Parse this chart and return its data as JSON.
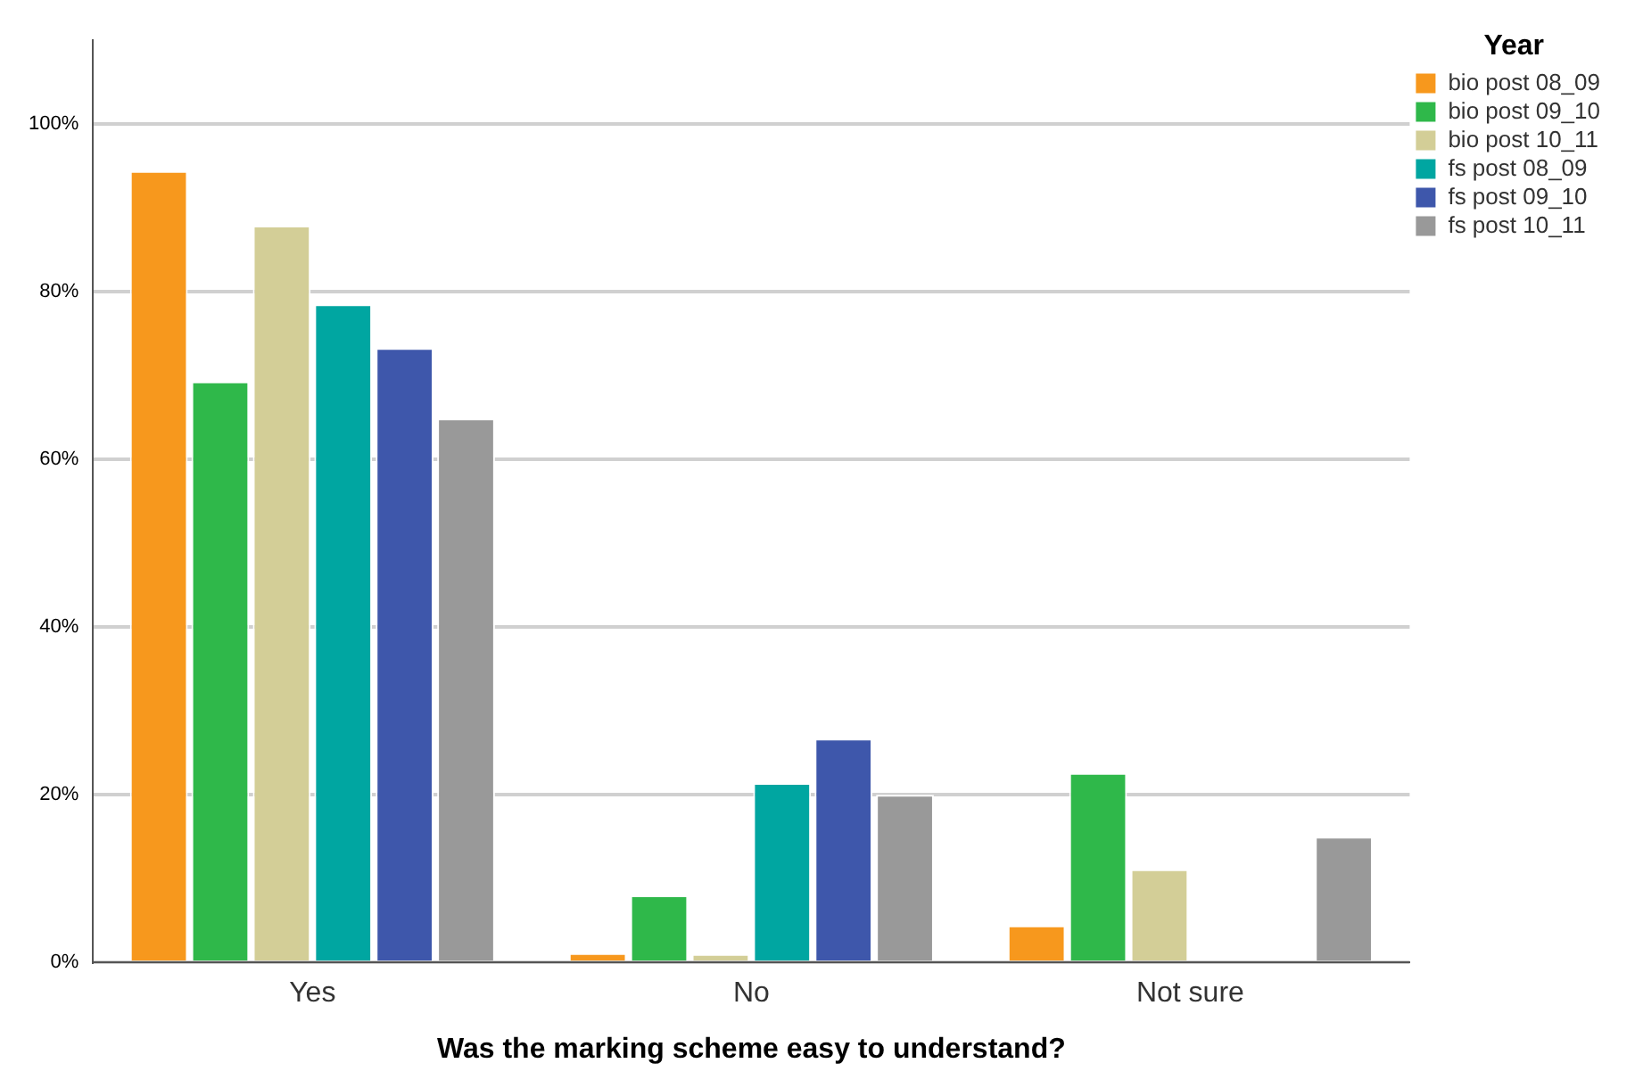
{
  "chart_data": {
    "type": "bar",
    "xlabel": "Was the marking scheme easy to understand?",
    "legend_title": "Year",
    "categories": [
      "Yes",
      "No",
      "Not sure"
    ],
    "series": [
      {
        "name": "bio post 08_09",
        "color": "#f7981d",
        "values": [
          94.4,
          1.1,
          4.4
        ]
      },
      {
        "name": "bio post 09_10",
        "color": "#2fb84a",
        "values": [
          69.3,
          8.0,
          22.6
        ]
      },
      {
        "name": "bio post 10_11",
        "color": "#d3ce97",
        "values": [
          87.9,
          1.0,
          11.1
        ]
      },
      {
        "name": "fs post 08_09",
        "color": "#00a6a1",
        "values": [
          78.5,
          21.4,
          0
        ]
      },
      {
        "name": "fs post 09_10",
        "color": "#3e57ab",
        "values": [
          73.3,
          26.7,
          0
        ]
      },
      {
        "name": "fs post 10_11",
        "color": "#999999",
        "values": [
          64.9,
          20.0,
          15.0
        ]
      }
    ],
    "ylim": [
      0,
      110
    ],
    "yticks": [
      {
        "value": 0,
        "label": "0%"
      },
      {
        "value": 20,
        "label": "20%"
      },
      {
        "value": 40,
        "label": "40%"
      },
      {
        "value": 60,
        "label": "60%"
      },
      {
        "value": 80,
        "label": "80%"
      },
      {
        "value": 100,
        "label": "100%"
      }
    ],
    "grid": "y",
    "legend": "top right"
  }
}
